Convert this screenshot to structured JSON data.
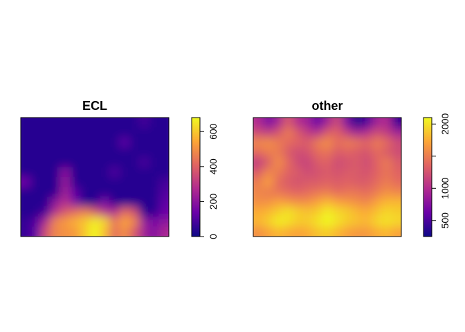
{
  "chart_data": [
    {
      "type": "heatmap",
      "title": "ECL",
      "xlabel": "",
      "ylabel": "",
      "axes": "none",
      "legend": "right",
      "palette": "plasma",
      "colorbar": {
        "range": [
          0,
          680
        ],
        "ticks": [
          0,
          200,
          400,
          600
        ],
        "tick_labels": [
          "0",
          "200",
          "400",
          "600"
        ],
        "colors": [
          "#0d0887",
          "#6a00a8",
          "#b12a90",
          "#e16462",
          "#fca636",
          "#f0f921"
        ]
      },
      "grid": {
        "rows": 12,
        "cols": 15,
        "values": [
          [
            40,
            40,
            40,
            40,
            40,
            40,
            40,
            40,
            40,
            40,
            40,
            40,
            80,
            40,
            40
          ],
          [
            40,
            40,
            40,
            40,
            40,
            40,
            40,
            40,
            40,
            40,
            40,
            40,
            40,
            40,
            40
          ],
          [
            40,
            40,
            40,
            40,
            40,
            40,
            40,
            40,
            40,
            40,
            120,
            40,
            40,
            40,
            40
          ],
          [
            40,
            40,
            40,
            40,
            40,
            40,
            40,
            40,
            40,
            40,
            40,
            40,
            40,
            40,
            40
          ],
          [
            40,
            40,
            40,
            40,
            40,
            40,
            40,
            40,
            40,
            40,
            40,
            40,
            90,
            40,
            40
          ],
          [
            40,
            40,
            40,
            40,
            200,
            40,
            40,
            40,
            40,
            100,
            40,
            40,
            40,
            40,
            40
          ],
          [
            150,
            40,
            40,
            40,
            220,
            40,
            40,
            40,
            40,
            40,
            40,
            40,
            40,
            40,
            80
          ],
          [
            40,
            40,
            40,
            40,
            240,
            120,
            40,
            40,
            40,
            40,
            40,
            40,
            40,
            40,
            100
          ],
          [
            40,
            40,
            40,
            200,
            280,
            160,
            40,
            40,
            160,
            40,
            40,
            40,
            40,
            40,
            120
          ],
          [
            40,
            40,
            80,
            280,
            380,
            420,
            460,
            380,
            280,
            260,
            420,
            360,
            40,
            40,
            140
          ],
          [
            60,
            100,
            260,
            480,
            520,
            560,
            600,
            660,
            620,
            440,
            540,
            480,
            220,
            160,
            200
          ],
          [
            60,
            120,
            360,
            480,
            500,
            520,
            600,
            680,
            580,
            420,
            500,
            380,
            240,
            180,
            260
          ]
        ]
      }
    },
    {
      "type": "heatmap",
      "title": "other",
      "xlabel": "",
      "ylabel": "",
      "axes": "none",
      "legend": "right",
      "palette": "plasma",
      "colorbar": {
        "range": [
          250,
          2100
        ],
        "ticks": [
          500,
          1000,
          1500,
          2000
        ],
        "tick_labels": [
          "500",
          "1000",
          "",
          "2000"
        ],
        "colors": [
          "#0d0887",
          "#6a00a8",
          "#b12a90",
          "#e16462",
          "#fca636",
          "#f0f921"
        ]
      },
      "grid": {
        "rows": 12,
        "cols": 15,
        "values": [
          [
            1000,
            700,
            900,
            1300,
            1000,
            900,
            600,
            900,
            1200,
            700,
            300,
            500,
            900,
            1000,
            400
          ],
          [
            1200,
            1100,
            1250,
            1500,
            1300,
            1100,
            1000,
            1300,
            1350,
            1100,
            900,
            1000,
            1200,
            1100,
            900
          ],
          [
            1550,
            1600,
            1500,
            1400,
            1350,
            1300,
            1500,
            1600,
            1400,
            1500,
            1450,
            1350,
            1500,
            1400,
            1200
          ],
          [
            1400,
            1500,
            1500,
            1300,
            1200,
            1250,
            1400,
            1450,
            1300,
            1350,
            1300,
            1250,
            1400,
            1300,
            1200
          ],
          [
            1100,
            1300,
            1600,
            1400,
            1200,
            1150,
            1300,
            1350,
            1200,
            1250,
            1300,
            1200,
            1350,
            1500,
            1300
          ],
          [
            1300,
            1550,
            1500,
            1350,
            1300,
            1200,
            1250,
            1300,
            1250,
            1300,
            1300,
            1250,
            1350,
            1450,
            1350
          ],
          [
            1500,
            1700,
            1400,
            1300,
            1250,
            1300,
            1300,
            1350,
            1300,
            1350,
            1300,
            1300,
            1400,
            1500,
            1400
          ],
          [
            1550,
            1500,
            1450,
            1400,
            1350,
            1400,
            1450,
            1500,
            1400,
            1450,
            1450,
            1400,
            1500,
            1600,
            1550
          ],
          [
            1600,
            1600,
            1700,
            1650,
            1600,
            1600,
            1700,
            1800,
            1700,
            1650,
            1600,
            1550,
            1700,
            1800,
            1800
          ],
          [
            1750,
            1800,
            1900,
            2000,
            1900,
            1850,
            1900,
            2050,
            1950,
            1900,
            1800,
            1750,
            1850,
            1950,
            1900
          ],
          [
            1800,
            1900,
            2050,
            2000,
            1900,
            1900,
            2000,
            2100,
            2000,
            1900,
            1850,
            1800,
            1950,
            2000,
            1950
          ],
          [
            1600,
            1700,
            1800,
            1750,
            1700,
            1750,
            1850,
            1900,
            1800,
            1700,
            1650,
            1650,
            1750,
            1800,
            1700
          ]
        ]
      }
    }
  ]
}
